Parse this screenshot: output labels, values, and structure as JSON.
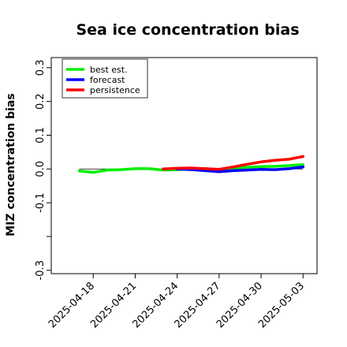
{
  "chart_data": {
    "type": "line",
    "title": "Sea ice concentration bias",
    "xlabel": "",
    "ylabel": "MIZ concentration bias",
    "ylim": [
      -0.31,
      0.33
    ],
    "xlim": [
      "2025-04-15",
      "2025-05-04"
    ],
    "yticks": [
      -0.3,
      -0.2,
      -0.1,
      0.0,
      0.1,
      0.2,
      0.3
    ],
    "ytick_labels": [
      "-0.3",
      "",
      "-0.1",
      "0.0",
      "0.1",
      "0.2",
      "0.3"
    ],
    "xticks": [
      "2025-04-18",
      "2025-04-21",
      "2025-04-24",
      "2025-04-27",
      "2025-04-30",
      "2025-05-03"
    ],
    "highlight_tick": "2025-04-24",
    "highlight_color": "#228b22",
    "zero_line": true,
    "grid": false,
    "legend_position": "top-left",
    "series": [
      {
        "name": "best est.",
        "color": "#00ee00",
        "x": [
          "2025-04-17",
          "2025-04-18",
          "2025-04-19",
          "2025-04-20",
          "2025-04-21",
          "2025-04-22",
          "2025-04-23",
          "2025-04-24",
          "2025-04-25",
          "2025-04-26",
          "2025-04-27",
          "2025-04-28",
          "2025-04-29",
          "2025-04-30",
          "2025-05-01",
          "2025-05-02",
          "2025-05-03"
        ],
        "values": [
          -0.006,
          -0.01,
          -0.003,
          -0.002,
          0.001,
          0.001,
          -0.003,
          -0.002,
          0.0,
          0.001,
          -0.002,
          0.002,
          0.005,
          0.007,
          0.008,
          0.01,
          0.013
        ]
      },
      {
        "name": "forecast",
        "color": "#0000ff",
        "x": [
          "2025-04-24",
          "2025-04-25",
          "2025-04-26",
          "2025-04-27",
          "2025-04-28",
          "2025-04-29",
          "2025-04-30",
          "2025-05-01",
          "2025-05-02",
          "2025-05-03"
        ],
        "values": [
          0.0,
          -0.002,
          -0.005,
          -0.008,
          -0.005,
          -0.003,
          -0.001,
          -0.002,
          0.001,
          0.006
        ]
      },
      {
        "name": "persistence",
        "color": "#ff0000",
        "x": [
          "2025-04-23",
          "2025-04-24",
          "2025-04-25",
          "2025-04-26",
          "2025-04-27",
          "2025-04-28",
          "2025-04-29",
          "2025-04-30",
          "2025-05-01",
          "2025-05-02",
          "2025-05-03"
        ],
        "values": [
          0.0,
          0.002,
          0.003,
          0.001,
          -0.001,
          0.006,
          0.014,
          0.021,
          0.026,
          0.029,
          0.037
        ]
      }
    ]
  }
}
